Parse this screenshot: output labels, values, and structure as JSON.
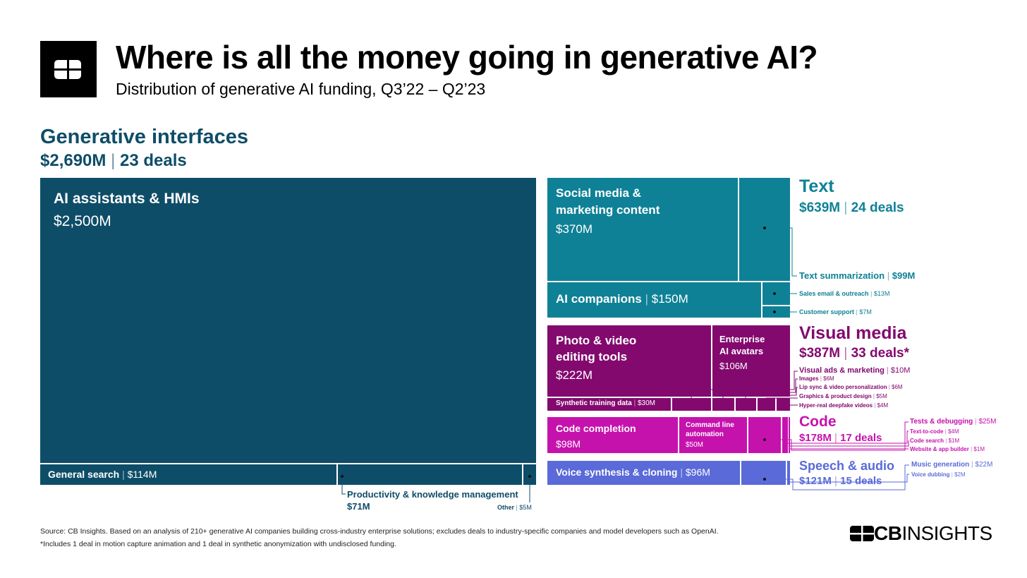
{
  "header": {
    "title": "Where is all the money going in generative AI?",
    "subtitle": "Distribution of generative AI funding, Q3’22 – Q2’23"
  },
  "chart_data": {
    "type": "treemap",
    "title": "Where is all the money going in generative AI?",
    "subtitle": "Distribution of generative AI funding, Q3’22 – Q2’23",
    "unit": "$M",
    "categories": [
      {
        "name": "Generative interfaces",
        "total_label": "$2,690M",
        "deals_label": "23 deals",
        "total": 2690,
        "deals": 23,
        "children": [
          {
            "name": "AI assistants & HMIs",
            "value_label": "$2,500M",
            "value": 2500
          },
          {
            "name": "General search",
            "value_label": "$114M",
            "value": 114
          },
          {
            "name": "Productivity & knowledge management",
            "value_label": "$71M",
            "value": 71
          },
          {
            "name": "Other",
            "value_label": "$5M",
            "value": 5
          }
        ]
      },
      {
        "name": "Text",
        "total_label": "$639M",
        "deals_label": "24 deals",
        "total": 639,
        "deals": 24,
        "children": [
          {
            "name": "Social media & marketing content",
            "value_label": "$370M",
            "value": 370
          },
          {
            "name": "AI companions",
            "value_label": "$150M",
            "value": 150
          },
          {
            "name": "Text summarization",
            "value_label": "$99M",
            "value": 99
          },
          {
            "name": "Sales email & outreach",
            "value_label": "$13M",
            "value": 13
          },
          {
            "name": "Customer support",
            "value_label": "$7M",
            "value": 7
          }
        ]
      },
      {
        "name": "Visual media",
        "total_label": "$387M",
        "deals_label": "33 deals*",
        "total": 387,
        "deals": 33,
        "children": [
          {
            "name": "Photo & video editing tools",
            "value_label": "$222M",
            "value": 222
          },
          {
            "name": "Enterprise AI avatars",
            "value_label": "$106M",
            "value": 106
          },
          {
            "name": "Synthetic training data",
            "value_label": "$30M",
            "value": 30
          },
          {
            "name": "Visual ads & marketing",
            "value_label": "$10M",
            "value": 10
          },
          {
            "name": "Images",
            "value_label": "$6M",
            "value": 6
          },
          {
            "name": "Lip sync & video personalization",
            "value_label": "$6M",
            "value": 6
          },
          {
            "name": "Graphics & product design",
            "value_label": "$5M",
            "value": 5
          },
          {
            "name": "Hyper-real deepfake videos",
            "value_label": "$4M",
            "value": 4
          }
        ]
      },
      {
        "name": "Code",
        "total_label": "$178M",
        "deals_label": "17 deals",
        "total": 178,
        "deals": 17,
        "children": [
          {
            "name": "Code completion",
            "value_label": "$98M",
            "value": 98
          },
          {
            "name": "Command line automation",
            "value_label": "$50M",
            "value": 50
          },
          {
            "name": "Tests & debugging",
            "value_label": "$25M",
            "value": 25
          },
          {
            "name": "Text-to-code",
            "value_label": "$4M",
            "value": 4
          },
          {
            "name": "Code search",
            "value_label": "$1M",
            "value": 1
          },
          {
            "name": "Website & app builder",
            "value_label": "$1M",
            "value": 1
          }
        ]
      },
      {
        "name": "Speech & audio",
        "total_label": "$121M",
        "deals_label": "15 deals",
        "total": 121,
        "deals": 15,
        "children": [
          {
            "name": "Voice synthesis & cloning",
            "value_label": "$96M",
            "value": 96
          },
          {
            "name": "Music generation",
            "value_label": "$22M",
            "value": 22
          },
          {
            "name": "Voice dubbing",
            "value_label": "$2M",
            "value": 2
          }
        ]
      }
    ],
    "colors": {
      "generative_interfaces": "#0e4d68",
      "text": "#0f8196",
      "visual_media": "#83096f",
      "code": "#c612ad",
      "speech_audio": "#5a6ad8"
    }
  },
  "labels": {
    "photo_line1": "Photo & video",
    "photo_line2": "editing tools",
    "social_line1": "Social media &",
    "social_line2": "marketing content",
    "avatars_line1": "Enterprise",
    "avatars_line2": "AI avatars",
    "cmd_line1": "Command line",
    "cmd_line2": "automation",
    "separator": "|"
  },
  "footer": {
    "source": "Source: CB Insights. Based on an analysis of 210+ generative AI companies building cross-industry enterprise solutions; excludes deals to industry-specific companies and model developers such as OpenAI.",
    "note": "*Includes 1 deal in motion capture animation and 1 deal in synthetic anonymization with undisclosed funding.",
    "brand_bold": "CB",
    "brand_light": "INSIGHTS"
  },
  "logo": {
    "text": "CB"
  }
}
